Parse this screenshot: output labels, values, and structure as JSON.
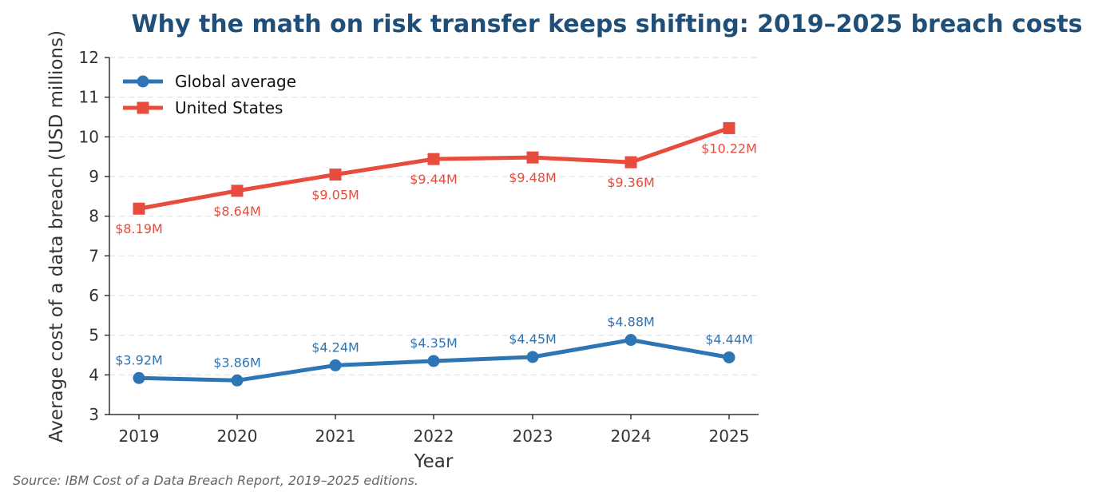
{
  "chart_data": {
    "type": "line",
    "title": "Why the math on risk transfer keeps shifting: 2019–2025 breach costs",
    "xlabel": "Year",
    "ylabel": "Average cost of a data breach (USD millions)",
    "x": [
      2019,
      2020,
      2021,
      2022,
      2023,
      2024,
      2025
    ],
    "x_tick_labels": [
      "2019",
      "2020",
      "2021",
      "2022",
      "2023",
      "2024",
      "2025"
    ],
    "ylim": [
      3,
      12
    ],
    "y_ticks": [
      3,
      4,
      5,
      6,
      7,
      8,
      9,
      10,
      11,
      12
    ],
    "y_tick_labels": [
      "3",
      "4",
      "5",
      "6",
      "7",
      "8",
      "9",
      "10",
      "11",
      "12"
    ],
    "grid": "horizontal dashed",
    "legend_position": "top-left",
    "series": [
      {
        "name": "Global average",
        "color": "#2e75b6",
        "marker": "circle",
        "values": [
          3.92,
          3.86,
          4.24,
          4.35,
          4.45,
          4.88,
          4.44
        ],
        "labels": [
          "$3.92M",
          "$3.86M",
          "$4.24M",
          "$4.35M",
          "$4.45M",
          "$4.88M",
          "$4.44M"
        ],
        "label_side": "above"
      },
      {
        "name": "United States",
        "color": "#e84c3d",
        "marker": "square",
        "values": [
          8.19,
          8.64,
          9.05,
          9.44,
          9.48,
          9.36,
          10.22
        ],
        "labels": [
          "$8.19M",
          "$8.64M",
          "$9.05M",
          "$9.44M",
          "$9.48M",
          "$9.36M",
          "$10.22M"
        ],
        "label_side": "below"
      }
    ],
    "source": "Source: IBM Cost of a Data Breach Report, 2019–2025 editions."
  }
}
